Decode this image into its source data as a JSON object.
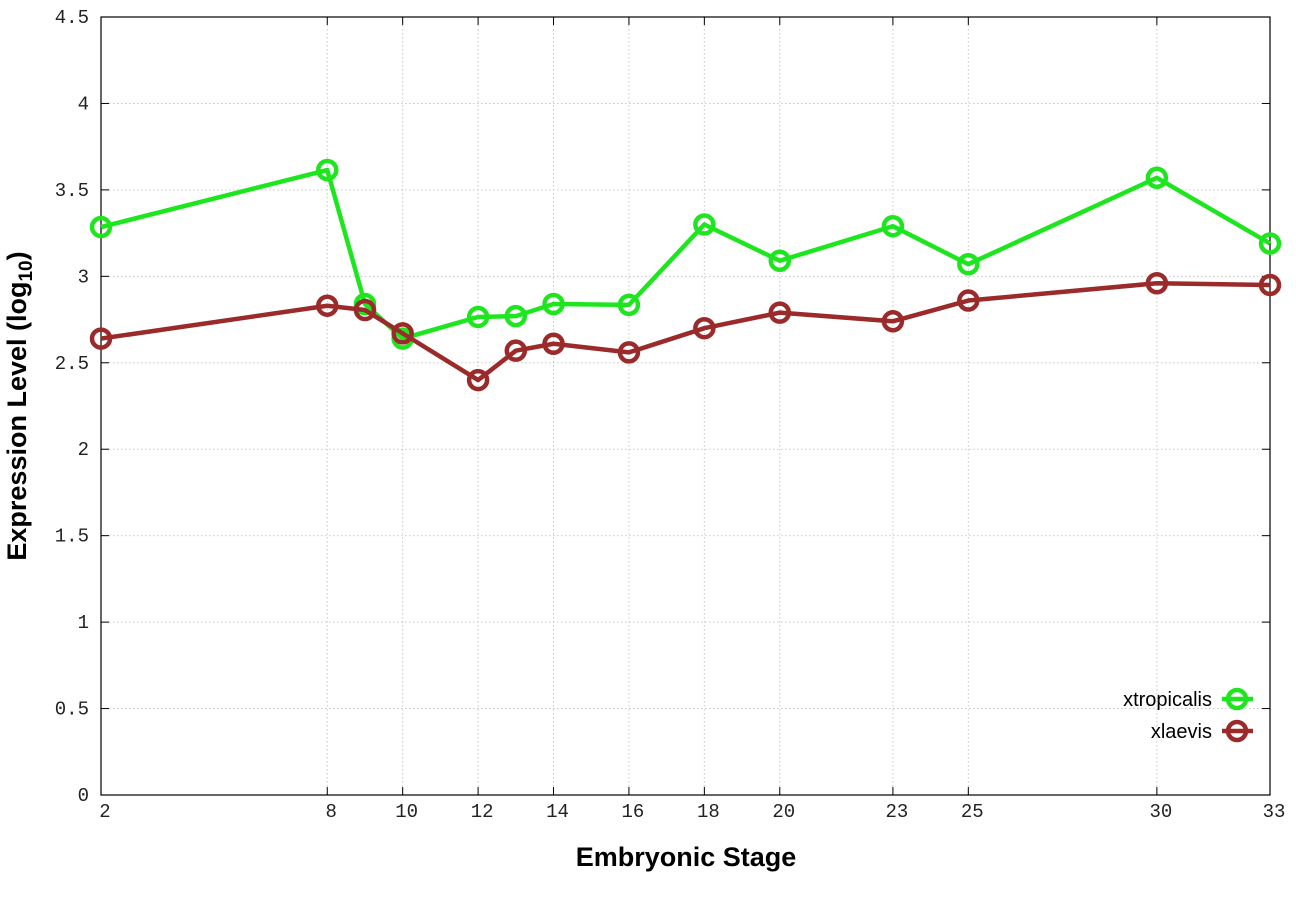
{
  "chart_data": {
    "type": "line",
    "x_label": "Embryonic Stage",
    "y_label": [
      "Expression Level (log",
      "10",
      ")"
    ],
    "x": [
      2,
      8,
      9,
      10,
      12,
      13,
      14,
      16,
      18,
      20,
      23,
      25,
      30,
      33
    ],
    "series": [
      {
        "name": "xtropicalis",
        "color": "#1ee61e",
        "values": [
          3.285,
          3.615,
          2.84,
          2.64,
          2.765,
          2.77,
          2.84,
          2.835,
          3.3,
          3.09,
          3.29,
          3.07,
          3.57,
          3.19
        ]
      },
      {
        "name": "xlaevis",
        "color": "#9b2a2a",
        "values": [
          2.64,
          2.83,
          2.805,
          2.67,
          2.4,
          2.57,
          2.61,
          2.56,
          2.7,
          2.79,
          2.74,
          2.86,
          2.96,
          2.95
        ]
      }
    ],
    "xlim": [
      2,
      33
    ],
    "xticks": [
      2,
      8,
      10,
      12,
      14,
      16,
      18,
      20,
      23,
      25,
      30,
      33
    ],
    "ylim": [
      0,
      4.5
    ],
    "yticks": [
      0,
      0.5,
      1,
      1.5,
      2,
      2.5,
      3,
      3.5,
      4,
      4.5
    ],
    "grid": true,
    "legend": "lower right"
  }
}
